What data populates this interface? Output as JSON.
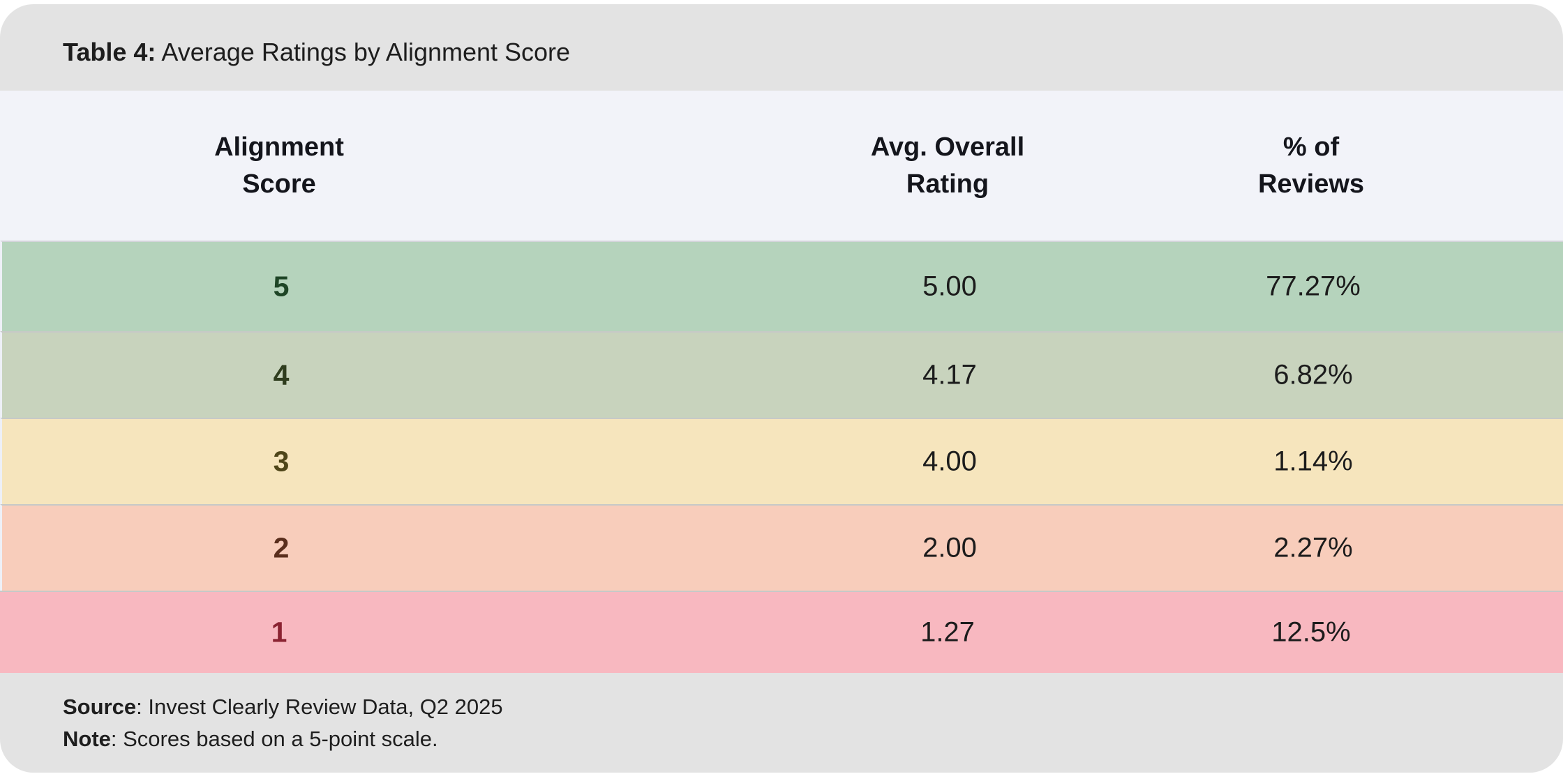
{
  "title": {
    "prefix": "Table 4:",
    "text": " Average Ratings by Alignment Score"
  },
  "table": {
    "columns": [
      {
        "line1": "Alignment",
        "line2": "Score"
      },
      {
        "line1": "Avg. Overall",
        "line2": "Rating"
      },
      {
        "line1": "% of",
        "line2": "Reviews"
      }
    ],
    "rows": [
      {
        "score": "5",
        "rating": "5.00",
        "pct": "77.27%",
        "bg": "#b5d3bc",
        "score_color": "#1e4526"
      },
      {
        "score": "4",
        "rating": "4.17",
        "pct": "6.82%",
        "bg": "#c8d3bd",
        "score_color": "#2f3d1e"
      },
      {
        "score": "3",
        "rating": "4.00",
        "pct": "1.14%",
        "bg": "#f6e5bd",
        "score_color": "#4f4619"
      },
      {
        "score": "2",
        "rating": "2.00",
        "pct": "2.27%",
        "bg": "#f8cdbb",
        "score_color": "#5a2e1c"
      },
      {
        "score": "1",
        "rating": "1.27",
        "pct": "12.5%",
        "bg": "#f8b8c0",
        "score_color": "#8b2332"
      }
    ]
  },
  "footer": {
    "source_label": "Source",
    "source_text": ": Invest Clearly Review Data, Q2 2025",
    "note_label": "Note",
    "note_text": ": Scores based on a 5-point scale."
  },
  "colors": {
    "titlebar_bg": "#e3e3e3",
    "header_bg": "#f2f3f9",
    "footer_bg": "#e3e3e3",
    "row_separator": "#c7c9c7"
  },
  "chart_data": {
    "type": "table",
    "title": "Table 4: Average Ratings by Alignment Score",
    "columns": [
      "Alignment Score",
      "Avg. Overall Rating",
      "% of Reviews"
    ],
    "categories": [
      "5",
      "4",
      "3",
      "2",
      "1"
    ],
    "series": [
      {
        "name": "Avg. Overall Rating",
        "values": [
          5.0,
          4.17,
          4.0,
          2.0,
          1.27
        ]
      },
      {
        "name": "% of Reviews",
        "values": [
          77.27,
          6.82,
          1.14,
          2.27,
          12.5
        ]
      }
    ],
    "row_colors": [
      "#b5d3bc",
      "#c8d3bd",
      "#f6e5bd",
      "#f8cdbb",
      "#f8b8c0"
    ],
    "source": "Invest Clearly Review Data, Q2 2025",
    "note": "Scores based on a 5-point scale."
  }
}
